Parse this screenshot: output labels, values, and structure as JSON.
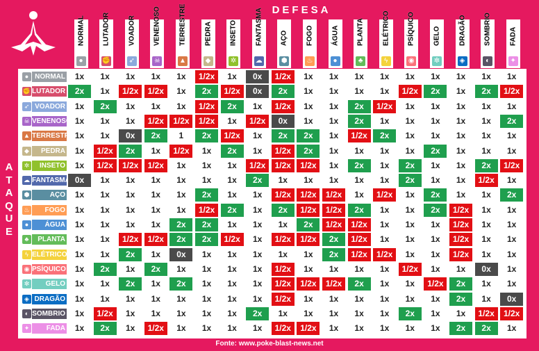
{
  "colors": {
    "background": "#e5195f",
    "weak_bg": "#1f9f4e",
    "strong_bg": "#e20f14",
    "immune_bg": "#4a4a4a"
  },
  "header": {
    "title": "DEFESA"
  },
  "side": {
    "letters": [
      "A",
      "T",
      "A",
      "Q",
      "U",
      "E"
    ]
  },
  "footer": {
    "source": "Fonte: www.poke-blast-news.net"
  },
  "types": [
    {
      "name": "NORMAL",
      "color": "#9aa0a6",
      "icon": "circle-icon"
    },
    {
      "name": "LUTADOR",
      "color": "#d74d6b",
      "icon": "fist-icon"
    },
    {
      "name": "VOADOR",
      "color": "#8ba9dc",
      "icon": "wing-icon"
    },
    {
      "name": "VENENOSO",
      "color": "#a865c9",
      "icon": "poison-icon"
    },
    {
      "name": "TERRESTRE",
      "color": "#d97845",
      "icon": "ground-icon"
    },
    {
      "name": "PEDRA",
      "color": "#c5b78c",
      "icon": "rock-icon"
    },
    {
      "name": "INSETO",
      "color": "#90c12c",
      "icon": "bug-icon"
    },
    {
      "name": "FANTASMA",
      "color": "#5269ac",
      "icon": "ghost-icon"
    },
    {
      "name": "AÇO",
      "color": "#5a8ea1",
      "icon": "steel-icon"
    },
    {
      "name": "FOGO",
      "color": "#ff9d55",
      "icon": "fire-icon"
    },
    {
      "name": "ÁGUA",
      "color": "#4d90d5",
      "icon": "water-icon"
    },
    {
      "name": "PLANTA",
      "color": "#63bc5a",
      "icon": "leaf-icon"
    },
    {
      "name": "ELÉTRICO",
      "color": "#f4d23c",
      "icon": "bolt-icon"
    },
    {
      "name": "PSÍQUICO",
      "color": "#fa7179",
      "icon": "psychic-icon"
    },
    {
      "name": "GELO",
      "color": "#73cec0",
      "icon": "ice-icon"
    },
    {
      "name": "DRAGÃO",
      "color": "#0b6dc3",
      "icon": "dragon-icon"
    },
    {
      "name": "SOMBRIO",
      "color": "#5a5465",
      "icon": "dark-icon"
    },
    {
      "name": "FADA",
      "color": "#ec8fe6",
      "icon": "fairy-icon"
    }
  ],
  "chart_data": {
    "type": "table",
    "title": "DEFESA",
    "row_label": "ATAQUE",
    "columns": [
      "NORMAL",
      "LUTADOR",
      "VOADOR",
      "VENENOSO",
      "TERRESTRE",
      "PEDRA",
      "INSETO",
      "FANTASMA",
      "AÇO",
      "FOGO",
      "ÁGUA",
      "PLANTA",
      "ELÉTRICO",
      "PSÍQUICO",
      "GELO",
      "DRAGÃO",
      "SOMBRIO",
      "FADA"
    ],
    "rows": [
      "NORMAL",
      "LUTADOR",
      "VOADOR",
      "VENENOSO",
      "TERRESTRE",
      "PEDRA",
      "INSETO",
      "FANTASMA",
      "AÇO",
      "FOGO",
      "ÁGUA",
      "PLANTA",
      "ELÉTRICO",
      "PSÍQUICO",
      "GELO",
      "DRAGÃO",
      "SOMBRIO",
      "FADA"
    ],
    "values": [
      [
        "1x",
        "1x",
        "1x",
        "1x",
        "1x",
        "1/2x",
        "1x",
        "0x",
        "1/2x",
        "1x",
        "1x",
        "1x",
        "1x",
        "1x",
        "1x",
        "1x",
        "1x",
        "1x"
      ],
      [
        "2x",
        "1x",
        "1/2x",
        "1/2x",
        "1x",
        "2x",
        "1/2x",
        "0x",
        "2x",
        "1x",
        "1x",
        "1x",
        "1x",
        "1/2x",
        "2x",
        "1x",
        "2x",
        "1/2x"
      ],
      [
        "1x",
        "2x",
        "1x",
        "1x",
        "1x",
        "1/2x",
        "2x",
        "1x",
        "1/2x",
        "1x",
        "1x",
        "2x",
        "1/2x",
        "1x",
        "1x",
        "1x",
        "1x",
        "1x"
      ],
      [
        "1x",
        "1x",
        "1x",
        "1/2x",
        "1/2x",
        "1/2x",
        "1x",
        "1/2x",
        "0x",
        "1x",
        "1x",
        "2x",
        "1x",
        "1x",
        "1x",
        "1x",
        "1x",
        "2x"
      ],
      [
        "1x",
        "1x",
        "0x",
        "2x",
        "1",
        "2x",
        "1/2x",
        "1x",
        "2x",
        "2x",
        "1x",
        "1/2x",
        "2x",
        "1x",
        "1x",
        "1x",
        "1x",
        "1x"
      ],
      [
        "1x",
        "1/2x",
        "2x",
        "1x",
        "1/2x",
        "1x",
        "2x",
        "1x",
        "1/2x",
        "2x",
        "1x",
        "1x",
        "1x",
        "1x",
        "2x",
        "1x",
        "1x",
        "1x"
      ],
      [
        "1x",
        "1/2x",
        "1/2x",
        "1/2x",
        "1x",
        "1x",
        "1x",
        "1/2x",
        "1/2x",
        "1/2x",
        "1x",
        "2x",
        "1x",
        "2x",
        "1x",
        "1x",
        "2x",
        "1/2x"
      ],
      [
        "0x",
        "1x",
        "1x",
        "1x",
        "1x",
        "1x",
        "1x",
        "2x",
        "1x",
        "1x",
        "1x",
        "1x",
        "1x",
        "2x",
        "1x",
        "1x",
        "1/2x",
        "1x"
      ],
      [
        "1x",
        "1x",
        "1x",
        "1x",
        "1x",
        "2x",
        "1x",
        "1x",
        "1/2x",
        "1/2x",
        "1/2x",
        "1x",
        "1/2x",
        "1x",
        "2x",
        "1x",
        "1x",
        "2x"
      ],
      [
        "1x",
        "1x",
        "1x",
        "1x",
        "1x",
        "1/2x",
        "2x",
        "1x",
        "2x",
        "1/2x",
        "1/2x",
        "2x",
        "1x",
        "1x",
        "2x",
        "1/2x",
        "1x",
        "1x"
      ],
      [
        "1x",
        "1x",
        "1x",
        "1x",
        "2x",
        "2x",
        "1x",
        "1x",
        "1x",
        "2x",
        "1/2x",
        "1/2x",
        "1x",
        "1x",
        "1x",
        "1/2x",
        "1x",
        "1x"
      ],
      [
        "1x",
        "1x",
        "1/2x",
        "1/2x",
        "2x",
        "2x",
        "1/2x",
        "1x",
        "1/2x",
        "1/2x",
        "2x",
        "1/2x",
        "1x",
        "1x",
        "1x",
        "1/2x",
        "1x",
        "1x"
      ],
      [
        "1x",
        "1x",
        "2x",
        "1x",
        "0x",
        "1x",
        "1x",
        "1x",
        "1x",
        "1x",
        "2x",
        "1/2x",
        "1/2x",
        "1x",
        "1x",
        "1/2x",
        "1x",
        "1x"
      ],
      [
        "1x",
        "2x",
        "1x",
        "2x",
        "1x",
        "1x",
        "1x",
        "1x",
        "1/2x",
        "1x",
        "1x",
        "1x",
        "1x",
        "1/2x",
        "1x",
        "1x",
        "0x",
        "1x"
      ],
      [
        "1x",
        "1x",
        "2x",
        "1x",
        "2x",
        "1x",
        "1x",
        "1x",
        "1/2x",
        "1/2x",
        "1/2x",
        "2x",
        "1x",
        "1x",
        "1/2x",
        "2x",
        "1x",
        "1x"
      ],
      [
        "1x",
        "1x",
        "1x",
        "1x",
        "1x",
        "1x",
        "1x",
        "1x",
        "1/2x",
        "1x",
        "1x",
        "1x",
        "1x",
        "1x",
        "1x",
        "2x",
        "1x",
        "0x"
      ],
      [
        "1x",
        "1/2x",
        "1x",
        "1x",
        "1x",
        "1x",
        "1x",
        "2x",
        "1x",
        "1x",
        "1x",
        "1x",
        "1x",
        "2x",
        "1x",
        "1x",
        "1/2x",
        "1/2x"
      ],
      [
        "1x",
        "2x",
        "1x",
        "1/2x",
        "1x",
        "1x",
        "1x",
        "1x",
        "1/2x",
        "1/2x",
        "1x",
        "1x",
        "1x",
        "1x",
        "1x",
        "2x",
        "2x",
        "1x"
      ]
    ]
  }
}
